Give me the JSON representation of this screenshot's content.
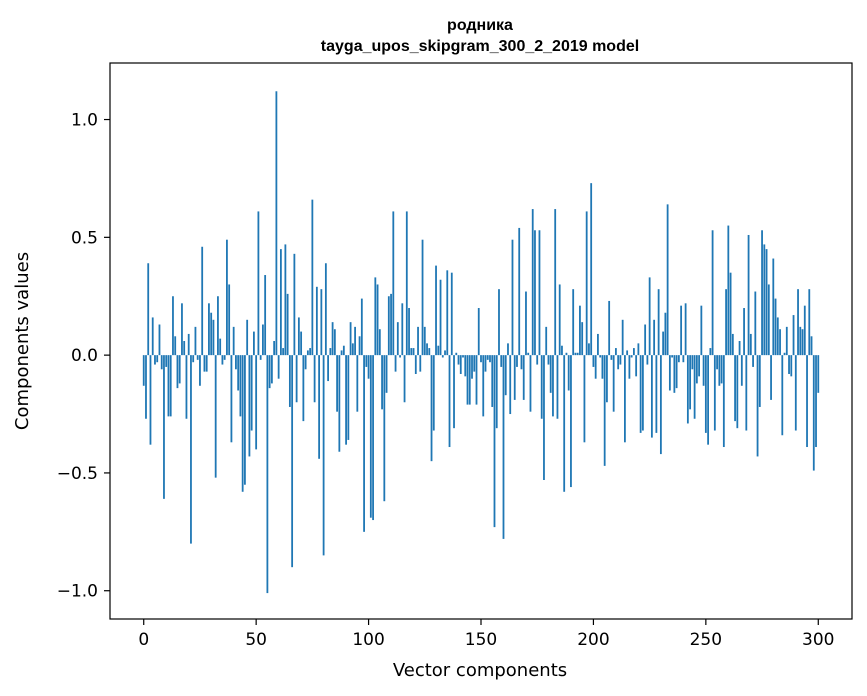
{
  "chart_data": {
    "type": "bar",
    "title": "родника",
    "subtitle": "tayga_upos_skipgram_300_2_2019 model",
    "xlabel": "Vector components",
    "ylabel": "Components values",
    "xlim": [
      -15,
      315
    ],
    "ylim": [
      -1.12,
      1.24
    ],
    "xticks": [
      0,
      50,
      100,
      150,
      200,
      250,
      300
    ],
    "yticks": [
      1.0,
      0.5,
      0.0,
      -0.5,
      -1.0
    ],
    "ytick_labels": [
      "1.0",
      "0.5",
      "0.0",
      "−0.5",
      "−1.0"
    ],
    "bar_color": "#1f77b4",
    "grid": false,
    "legend": "none",
    "values": [
      -0.13,
      -0.27,
      0.39,
      -0.38,
      0.16,
      -0.04,
      -0.03,
      0.13,
      -0.06,
      -0.61,
      -0.05,
      -0.26,
      -0.26,
      0.25,
      0.08,
      -0.14,
      -0.12,
      0.22,
      0.06,
      -0.27,
      0.09,
      -0.8,
      -0.03,
      0.12,
      -0.02,
      -0.13,
      0.46,
      -0.07,
      -0.07,
      0.22,
      0.18,
      0.15,
      -0.52,
      0.25,
      0.07,
      -0.04,
      -0.02,
      0.49,
      0.3,
      -0.37,
      0.12,
      -0.06,
      -0.15,
      -0.26,
      -0.58,
      -0.55,
      0.15,
      -0.43,
      -0.32,
      0.1,
      -0.4,
      0.61,
      -0.02,
      0.13,
      0.34,
      -1.01,
      -0.14,
      -0.12,
      0.06,
      1.12,
      -0.1,
      0.45,
      0.03,
      0.47,
      0.26,
      -0.22,
      -0.9,
      0.43,
      -0.2,
      0.16,
      0.1,
      -0.28,
      -0.06,
      0.02,
      0.03,
      0.66,
      -0.2,
      0.29,
      -0.44,
      0.28,
      -0.85,
      0.39,
      -0.11,
      0.03,
      0.14,
      0.11,
      -0.24,
      -0.41,
      0.02,
      0.04,
      -0.38,
      -0.36,
      0.14,
      0.05,
      0.12,
      -0.24,
      0.08,
      0.24,
      -0.75,
      -0.05,
      -0.1,
      -0.69,
      -0.7,
      0.33,
      0.3,
      0.11,
      -0.23,
      -0.62,
      -0.16,
      0.25,
      0.26,
      0.61,
      -0.07,
      0.14,
      -0.01,
      0.22,
      -0.2,
      0.61,
      0.2,
      0.03,
      0.03,
      -0.08,
      0.12,
      -0.07,
      0.49,
      0.12,
      0.05,
      0.03,
      -0.45,
      -0.32,
      0.38,
      0.04,
      0.32,
      -0.01,
      0.02,
      0.36,
      -0.39,
      0.35,
      -0.31,
      0.01,
      -0.04,
      -0.08,
      -0.01,
      -0.09,
      -0.21,
      -0.21,
      -0.1,
      -0.07,
      -0.21,
      0.2,
      -0.03,
      -0.26,
      -0.07,
      -0.02,
      -0.03,
      -0.22,
      -0.73,
      -0.31,
      0.28,
      -0.05,
      -0.78,
      -0.17,
      0.05,
      -0.25,
      0.49,
      -0.19,
      -0.05,
      0.54,
      -0.06,
      -0.19,
      0.27,
      0.01,
      -0.24,
      0.62,
      0.53,
      -0.04,
      0.53,
      -0.27,
      -0.53,
      0.12,
      -0.04,
      -0.16,
      -0.26,
      0.62,
      -0.27,
      0.3,
      0.04,
      -0.58,
      0.01,
      -0.15,
      -0.56,
      0.28,
      0.01,
      0.01,
      0.21,
      0.14,
      -0.37,
      0.61,
      0.05,
      0.73,
      -0.05,
      -0.1,
      0.09,
      -0.01,
      -0.1,
      -0.47,
      -0.2,
      0.23,
      -0.02,
      -0.24,
      0.03,
      -0.06,
      -0.04,
      0.15,
      -0.37,
      0.02,
      -0.1,
      -0.01,
      0.03,
      -0.09,
      0.05,
      -0.33,
      -0.32,
      0.13,
      -0.04,
      0.33,
      -0.35,
      0.15,
      -0.33,
      0.28,
      -0.42,
      0.1,
      0.18,
      0.64,
      -0.15,
      -0.01,
      -0.16,
      -0.14,
      -0.03,
      0.21,
      -0.03,
      0.22,
      -0.29,
      -0.23,
      -0.06,
      -0.27,
      -0.12,
      -0.09,
      0.21,
      -0.13,
      -0.33,
      -0.38,
      0.03,
      0.53,
      -0.32,
      -0.06,
      -0.13,
      -0.12,
      -0.39,
      0.28,
      0.55,
      0.35,
      0.09,
      -0.28,
      -0.31,
      0.06,
      -0.13,
      0.2,
      -0.32,
      0.51,
      0.09,
      -0.05,
      0.27,
      -0.43,
      -0.22,
      0.53,
      0.47,
      0.45,
      0.3,
      -0.19,
      0.41,
      0.24,
      0.16,
      0.11,
      -0.34,
      0.01,
      0.12,
      -0.08,
      -0.09,
      0.17,
      -0.32,
      0.28,
      0.12,
      0.11,
      0.21,
      -0.39,
      0.28,
      0.08,
      -0.49,
      -0.39,
      -0.16
    ]
  }
}
